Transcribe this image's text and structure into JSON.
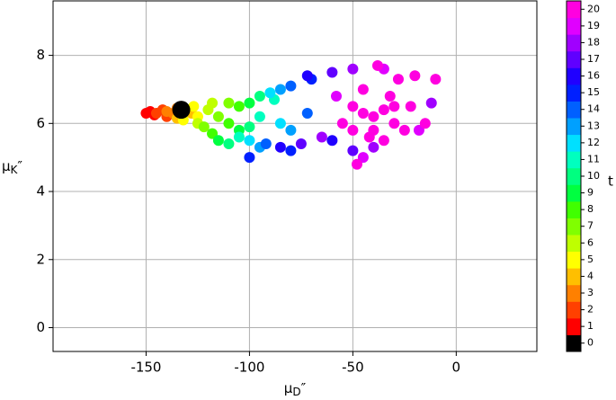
{
  "chart_data": {
    "type": "scatter",
    "xlabel": {
      "symbol": "μ",
      "subscript": "D",
      "suffix": "″"
    },
    "ylabel": {
      "symbol": "μ",
      "subscript": "K",
      "suffix": "″"
    },
    "xlim": [
      -195,
      39
    ],
    "ylim": [
      -0.7,
      9.6
    ],
    "xticks": [
      -150,
      -100,
      -50,
      0
    ],
    "yticks": [
      0,
      2,
      4,
      6,
      8
    ],
    "grid": true,
    "x": [
      -150,
      -148,
      -146,
      -145,
      -142,
      -140,
      -140,
      -137,
      -135,
      -135,
      -130,
      -128,
      -132,
      -127,
      -125,
      -125,
      -120,
      -118,
      -122,
      -115,
      -110,
      -118,
      -110,
      -105,
      -115,
      -105,
      -100,
      -110,
      -100,
      -95,
      -105,
      -95,
      -88,
      -100,
      -90,
      -85,
      -95,
      -85,
      -80,
      -92,
      -80,
      -72,
      -100,
      -80,
      -70,
      -85,
      -72,
      -60,
      -75,
      -60,
      -50,
      -65,
      -50,
      -40,
      -12,
      -58,
      -45,
      -35,
      -18,
      -55,
      -50,
      -48,
      -45,
      -42,
      -40,
      -38,
      -35,
      -32,
      -30,
      -28,
      -25,
      -22,
      -20,
      -15,
      -10,
      -45,
      -35,
      -40,
      -30,
      -50
    ],
    "y": [
      6.3,
      6.35,
      6.25,
      6.3,
      6.4,
      6.2,
      6.35,
      6.3,
      6.45,
      6.15,
      6.4,
      6.3,
      6.1,
      6.5,
      6.2,
      6.0,
      6.4,
      6.6,
      5.9,
      6.2,
      6.6,
      5.7,
      6.0,
      6.5,
      5.5,
      5.8,
      6.6,
      5.4,
      5.9,
      6.8,
      5.6,
      6.2,
      6.7,
      5.5,
      6.9,
      6.0,
      5.3,
      7.0,
      5.8,
      5.4,
      7.1,
      6.3,
      5.0,
      5.2,
      7.3,
      5.3,
      7.4,
      5.5,
      5.4,
      7.5,
      5.2,
      5.6,
      7.6,
      5.3,
      6.6,
      6.8,
      5.0,
      7.6,
      5.8,
      6.0,
      6.5,
      4.8,
      7.0,
      5.6,
      6.2,
      7.7,
      5.5,
      6.8,
      6.0,
      7.3,
      5.8,
      6.5,
      7.4,
      6.0,
      7.3,
      6.3,
      6.4,
      5.8,
      6.5,
      5.8
    ],
    "t": [
      1,
      1,
      1,
      2,
      2,
      2,
      3,
      3,
      3,
      4,
      4,
      4,
      5,
      5,
      5,
      6,
      6,
      6,
      7,
      7,
      7,
      8,
      8,
      8,
      9,
      9,
      9,
      10,
      10,
      10,
      11,
      11,
      11,
      12,
      12,
      12,
      13,
      13,
      13,
      14,
      14,
      14,
      15,
      15,
      15,
      16,
      16,
      16,
      17,
      17,
      17,
      18,
      18,
      18,
      18,
      19,
      19,
      19,
      19,
      20,
      20,
      20,
      20,
      20,
      20,
      20,
      20,
      20,
      20,
      20,
      20,
      20,
      20,
      20,
      20,
      20,
      20,
      20,
      20,
      20
    ],
    "marker": {
      "x": -133,
      "y": 6.4,
      "color": "#000000"
    },
    "colorbar": {
      "label": "t",
      "ticks": [
        0,
        1,
        2,
        3,
        4,
        5,
        6,
        7,
        8,
        9,
        10,
        11,
        12,
        13,
        14,
        15,
        16,
        17,
        18,
        19,
        20
      ],
      "colors": [
        "#000000",
        "#ff0000",
        "#ff4000",
        "#ff8000",
        "#ffbf00",
        "#ffff00",
        "#bfff00",
        "#80ff00",
        "#40ff00",
        "#00ff40",
        "#00ff80",
        "#00ffbf",
        "#00e0ff",
        "#00a0ff",
        "#0060ff",
        "#0020ff",
        "#2000ff",
        "#6000ff",
        "#a000ff",
        "#e000ff",
        "#ff00e0"
      ]
    }
  }
}
